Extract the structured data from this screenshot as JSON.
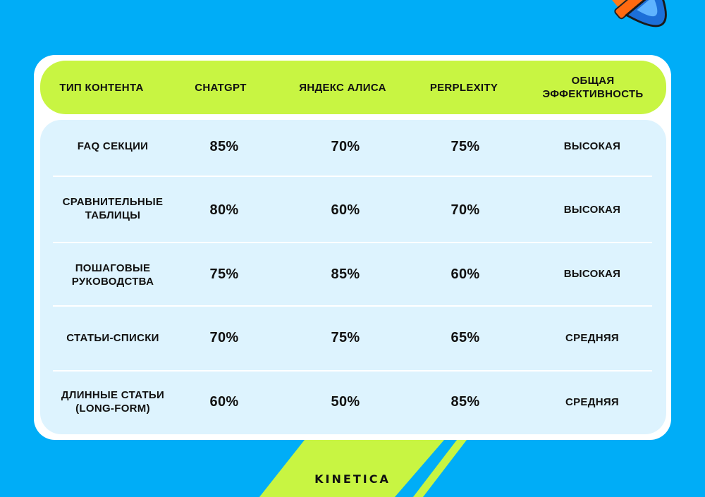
{
  "colors": {
    "background": "#00adf7",
    "accent_lime": "#c8f542",
    "panel": "#ddf3fe",
    "card": "#ffffff",
    "text": "#111111"
  },
  "table": {
    "headers": [
      "Тип контента",
      "ChatGPT",
      "Яндекс Алиса",
      "Perplexity",
      "Общая эффективность"
    ],
    "rows": [
      {
        "type": "FAQ секции",
        "chatgpt": "85%",
        "alice": "70%",
        "perplexity": "75%",
        "efficiency": "Высокая"
      },
      {
        "type": "Сравнительные таблицы",
        "chatgpt": "80%",
        "alice": "60%",
        "perplexity": "70%",
        "efficiency": "Высокая"
      },
      {
        "type": "Пошаговые руководства",
        "chatgpt": "75%",
        "alice": "85%",
        "perplexity": "60%",
        "efficiency": "Высокая"
      },
      {
        "type": "Статьи-списки",
        "chatgpt": "70%",
        "alice": "75%",
        "perplexity": "65%",
        "efficiency": "Средняя"
      },
      {
        "type": "Длинные статьи (long-form)",
        "chatgpt": "60%",
        "alice": "50%",
        "perplexity": "85%",
        "efficiency": "Средняя"
      }
    ]
  },
  "brand": {
    "name": "KINETICA"
  },
  "decor": {
    "pen": "pen-nib-icon"
  }
}
